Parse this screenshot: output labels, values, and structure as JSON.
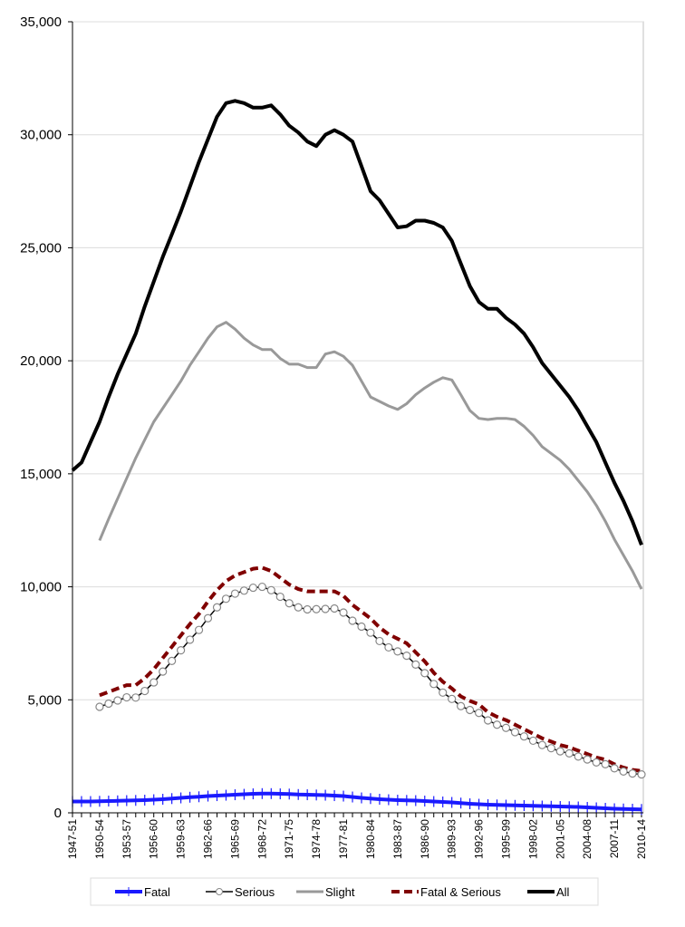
{
  "chart_data": {
    "type": "line",
    "title": "",
    "xlabel": "",
    "ylabel": "",
    "ylim": [
      0,
      35000
    ],
    "yticks": [
      "0",
      "5,000",
      "10,000",
      "15,000",
      "20,000",
      "25,000",
      "30,000",
      "35,000"
    ],
    "ytick_values": [
      0,
      5000,
      10000,
      15000,
      20000,
      25000,
      30000,
      35000
    ],
    "grid": true,
    "legend_position": "bottom",
    "x": [
      "1947-51",
      "1948-52",
      "1949-53",
      "1950-54",
      "1951-55",
      "1952-56",
      "1953-57",
      "1954-58",
      "1955-59",
      "1956-60",
      "1957-61",
      "1958-62",
      "1959-63",
      "1960-64",
      "1961-65",
      "1962-66",
      "1963-67",
      "1964-68",
      "1965-69",
      "1966-70",
      "1967-71",
      "1968-72",
      "1969-73",
      "1970-74",
      "1971-75",
      "1972-76",
      "1973-77",
      "1974-78",
      "1975-79",
      "1976-80",
      "1977-81",
      "1978-82",
      "1979-83",
      "1980-84",
      "1981-85",
      "1982-86",
      "1983-87",
      "1984-88",
      "1985-89",
      "1986-90",
      "1987-91",
      "1988-92",
      "1989-93",
      "1990-94",
      "1991-95",
      "1992-96",
      "1993-97",
      "1994-98",
      "1995-99",
      "1996-00",
      "1997-01",
      "1998-02",
      "1999-03",
      "2000-04",
      "2001-05",
      "2002-06",
      "2003-07",
      "2004-08",
      "2005-09",
      "2006-10",
      "2007-11",
      "2008-12",
      "2009-13",
      "2010-14"
    ],
    "xtick_labels": [
      "1947-51",
      "1950-54",
      "1953-57",
      "1956-60",
      "1959-63",
      "1962-66",
      "1965-69",
      "1968-72",
      "1971-75",
      "1974-78",
      "1977-81",
      "1980-84",
      "1983-87",
      "1986-90",
      "1989-93",
      "1992-96",
      "1995-99",
      "1998-02",
      "2001-05",
      "2004-08",
      "2007-11",
      "2010-14"
    ],
    "series": [
      {
        "name": "Fatal",
        "color": "#1a1aff",
        "style": "plus-markers",
        "values": [
          500,
          500,
          500,
          510,
          520,
          530,
          540,
          550,
          560,
          580,
          600,
          630,
          660,
          690,
          710,
          740,
          760,
          780,
          800,
          820,
          840,
          850,
          850,
          840,
          830,
          810,
          800,
          790,
          780,
          760,
          740,
          700,
          660,
          630,
          600,
          580,
          560,
          550,
          540,
          520,
          500,
          480,
          460,
          430,
          400,
          380,
          360,
          350,
          340,
          330,
          320,
          310,
          300,
          290,
          280,
          270,
          260,
          240,
          220,
          200,
          180,
          170,
          160,
          150
        ]
      },
      {
        "name": "Serious",
        "color": "#000000",
        "style": "circle-markers",
        "values": [
          null,
          null,
          null,
          4690,
          4830,
          4970,
          5110,
          5100,
          5390,
          5770,
          6250,
          6720,
          7190,
          7660,
          8090,
          8610,
          9090,
          9470,
          9700,
          9830,
          9960,
          10000,
          9850,
          9560,
          9270,
          9090,
          9000,
          9010,
          9020,
          9040,
          8860,
          8500,
          8240,
          7970,
          7600,
          7320,
          7140,
          6950,
          6560,
          6180,
          5700,
          5320,
          5040,
          4720,
          4550,
          4420,
          4090,
          3900,
          3760,
          3570,
          3380,
          3190,
          3000,
          2860,
          2720,
          2630,
          2490,
          2360,
          2230,
          2150,
          1970,
          1830,
          1740,
          1700
        ]
      },
      {
        "name": "Slight",
        "color": "#999999",
        "style": "solid",
        "values": [
          null,
          null,
          null,
          12050,
          13000,
          13900,
          14800,
          15700,
          16500,
          17300,
          17900,
          18500,
          19100,
          19800,
          20400,
          21000,
          21500,
          21700,
          21400,
          21000,
          20700,
          20500,
          20500,
          20100,
          19850,
          19850,
          19700,
          19700,
          20300,
          20400,
          20200,
          19800,
          19100,
          18400,
          18200,
          18000,
          17850,
          18100,
          18500,
          18800,
          19050,
          19250,
          19150,
          18500,
          17800,
          17450,
          17400,
          17450,
          17450,
          17400,
          17100,
          16700,
          16200,
          15900,
          15600,
          15200,
          14700,
          14200,
          13600,
          12900,
          12100,
          11400,
          10700,
          9900
        ]
      },
      {
        "name": "Fatal & Serious",
        "color": "#800000",
        "style": "dashed",
        "values": [
          null,
          null,
          null,
          5200,
          5350,
          5500,
          5650,
          5650,
          5950,
          6350,
          6850,
          7350,
          7850,
          8350,
          8800,
          9350,
          9850,
          10250,
          10500,
          10650,
          10800,
          10850,
          10700,
          10400,
          10100,
          9900,
          9800,
          9800,
          9800,
          9800,
          9600,
          9200,
          8900,
          8600,
          8200,
          7900,
          7700,
          7500,
          7100,
          6700,
          6200,
          5800,
          5500,
          5150,
          4950,
          4800,
          4450,
          4250,
          4100,
          3900,
          3700,
          3500,
          3300,
          3150,
          3000,
          2900,
          2750,
          2600,
          2450,
          2350,
          2150,
          2000,
          1900,
          1850
        ]
      },
      {
        "name": "All",
        "color": "#000000",
        "style": "bold",
        "values": [
          15150,
          15500,
          16400,
          17300,
          18400,
          19400,
          20300,
          21200,
          22400,
          23500,
          24600,
          25600,
          26600,
          27700,
          28800,
          29800,
          30800,
          31400,
          31500,
          31400,
          31200,
          31200,
          31300,
          30900,
          30400,
          30100,
          29700,
          29500,
          30000,
          30200,
          30000,
          29700,
          28600,
          27500,
          27100,
          26500,
          25900,
          25950,
          26200,
          26200,
          26100,
          25900,
          25300,
          24300,
          23300,
          22600,
          22300,
          22300,
          21900,
          21600,
          21200,
          20600,
          19900,
          19400,
          18900,
          18400,
          17800,
          17100,
          16400,
          15500,
          14600,
          13800,
          12900,
          11850
        ]
      }
    ]
  }
}
